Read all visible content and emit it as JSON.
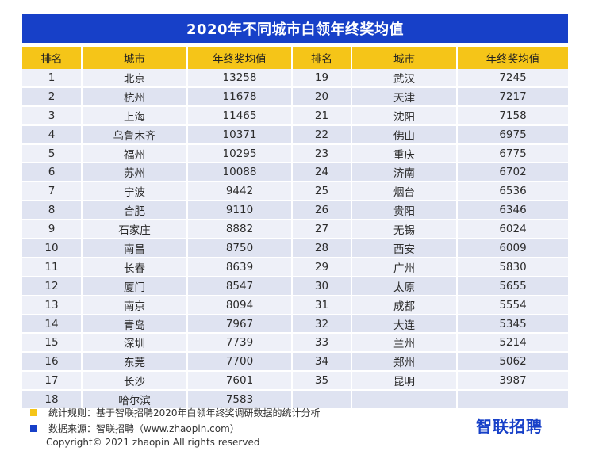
{
  "title": "2020年不同城市白领年终奖均值",
  "columns": [
    "排名",
    "城市",
    "年终奖均值",
    "排名",
    "城市",
    "年终奖均值"
  ],
  "left_rows": [
    [
      "1",
      "北京",
      "13258"
    ],
    [
      "2",
      "杭州",
      "11678"
    ],
    [
      "3",
      "上海",
      "11465"
    ],
    [
      "4",
      "乌鲁木齐",
      "10371"
    ],
    [
      "5",
      "福州",
      "10295"
    ],
    [
      "6",
      "苏州",
      "10088"
    ],
    [
      "7",
      "宁波",
      "9442"
    ],
    [
      "8",
      "合肥",
      "9110"
    ],
    [
      "9",
      "石家庄",
      "8882"
    ],
    [
      "10",
      "南昌",
      "8750"
    ],
    [
      "11",
      "长春",
      "8639"
    ],
    [
      "12",
      "厦门",
      "8547"
    ],
    [
      "13",
      "南京",
      "8094"
    ],
    [
      "14",
      "青岛",
      "7967"
    ],
    [
      "15",
      "深圳",
      "7739"
    ],
    [
      "16",
      "东莞",
      "7700"
    ],
    [
      "17",
      "长沙",
      "7601"
    ],
    [
      "18",
      "哈尔滨",
      "7583"
    ]
  ],
  "right_rows": [
    [
      "19",
      "武汉",
      "7245"
    ],
    [
      "20",
      "天津",
      "7217"
    ],
    [
      "21",
      "沈阳",
      "7158"
    ],
    [
      "22",
      "佛山",
      "6975"
    ],
    [
      "23",
      "重庆",
      "6775"
    ],
    [
      "24",
      "济南",
      "6702"
    ],
    [
      "25",
      "烟台",
      "6536"
    ],
    [
      "26",
      "贵阳",
      "6346"
    ],
    [
      "27",
      "无锡",
      "6024"
    ],
    [
      "28",
      "西安",
      "6009"
    ],
    [
      "29",
      "广州",
      "5830"
    ],
    [
      "30",
      "太原",
      "5655"
    ],
    [
      "31",
      "成都",
      "5554"
    ],
    [
      "32",
      "大连",
      "5345"
    ],
    [
      "33",
      "兰州",
      "5214"
    ],
    [
      "34",
      "郑州",
      "5062"
    ],
    [
      "35",
      "昆明",
      "3987"
    ],
    [
      "",
      "",
      ""
    ]
  ],
  "notes": {
    "rule": "统计规则：基于智联招聘2020年白领年终奖调研数据的统计分析",
    "source": "数据来源：智联招聘（www.zhaopin.com）",
    "rule_color": "#f5c518",
    "source_color": "#1740c8"
  },
  "copyright": "Copyright© 2021 zhaopin All rights reserved",
  "logo": "智联招聘",
  "colors": {
    "header_bg": "#1740c8",
    "col_header_bg": "#f5c518"
  }
}
